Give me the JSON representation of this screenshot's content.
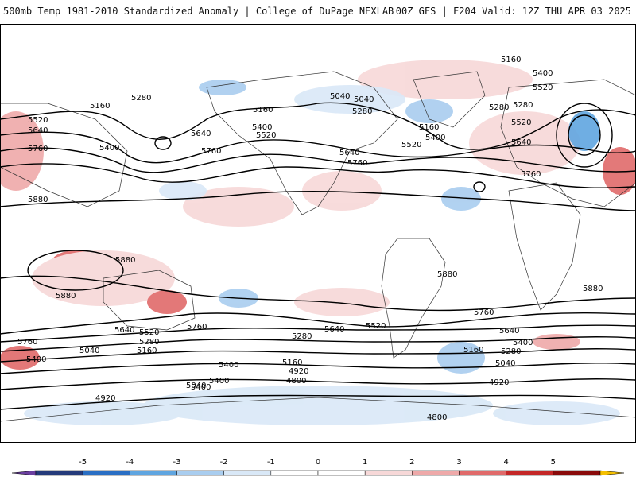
{
  "header": {
    "left_title": "500mb Temp 1981-2010 Standardized Anomaly | College of DuPage NEXLAB",
    "right_title": "00Z GFS | F204 Valid: 12Z THU APR 03 2025"
  },
  "colors": {
    "background": "#ffffff",
    "contour": "#000000",
    "coastline": "#333333",
    "legend_bins": [
      "#6b3fa0",
      "#243a7a",
      "#2a6fc4",
      "#5fa5e0",
      "#a9cdef",
      "#d9e8f7",
      "#ffffff",
      "#ffffff",
      "#f7d8d8",
      "#eea9a9",
      "#e06a6a",
      "#c42727",
      "#8a0b0b",
      "#f5c000"
    ]
  },
  "legend": {
    "ticks": [
      "-5",
      "-4",
      "-3",
      "-2",
      "-1",
      "0",
      "1",
      "2",
      "3",
      "4",
      "5"
    ]
  },
  "contour_labels": [
    "5160",
    "5400",
    "5520",
    "5280",
    "5040",
    "5280",
    "5160",
    "5400",
    "5520",
    "5640",
    "5760",
    "5520",
    "5640",
    "5760",
    "5400",
    "5160",
    "5280",
    "5400",
    "5520",
    "5640",
    "5760",
    "5880",
    "5880",
    "5880",
    "5880",
    "5880",
    "5640",
    "5520",
    "5280",
    "5160",
    "5040",
    "5760",
    "5400",
    "5040",
    "4920",
    "5760",
    "5640",
    "5520",
    "5280",
    "5400",
    "5160",
    "4920",
    "4800",
    "5760",
    "5640",
    "5520",
    "5400",
    "5280",
    "5160",
    "5040",
    "4920",
    "4800",
    "5280",
    "5160",
    "5400",
    "5640",
    "5760",
    "5400",
    "5040"
  ]
}
